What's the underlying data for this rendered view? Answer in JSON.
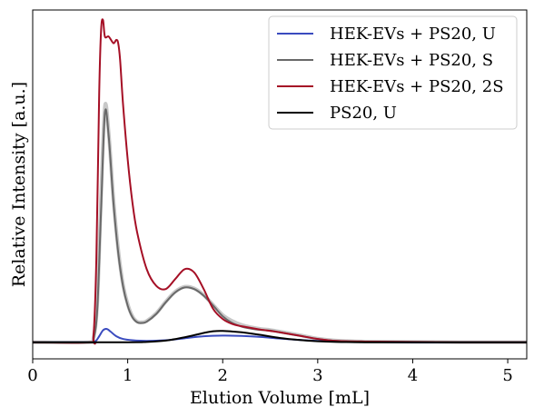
{
  "chart_data": {
    "type": "line",
    "xlabel": "Elution Volume [mL]",
    "ylabel": "Relative Intensity [a.u.]",
    "xlim": [
      0,
      5.2
    ],
    "ylim": [
      -0.05,
      1.0
    ],
    "xticks": [
      0,
      1,
      2,
      3,
      4,
      5
    ],
    "xtick_labels": [
      "0",
      "1",
      "2",
      "3",
      "4",
      "5"
    ],
    "yticks_visible": false,
    "grid": false,
    "legend_position": "top-right",
    "series": [
      {
        "name": "HEK-EVs + PS20, U",
        "color": "#3a4bbf",
        "x": [
          0,
          0.6,
          0.66,
          0.7,
          0.74,
          0.78,
          0.82,
          0.88,
          0.95,
          1.05,
          1.2,
          1.4,
          1.6,
          1.8,
          2.0,
          2.2,
          2.4,
          2.6,
          2.8,
          3.0,
          3.2,
          3.5,
          4.0,
          4.5,
          5.0,
          5.2
        ],
        "y": [
          0,
          0,
          0.003,
          0.018,
          0.036,
          0.04,
          0.032,
          0.018,
          0.01,
          0.006,
          0.004,
          0.006,
          0.012,
          0.018,
          0.02,
          0.019,
          0.016,
          0.011,
          0.007,
          0.004,
          0.002,
          0.001,
          0,
          0,
          0,
          0
        ]
      },
      {
        "name": "HEK-EVs + PS20, S",
        "color": "#696969",
        "x": [
          0,
          0.6,
          0.64,
          0.68,
          0.72,
          0.76,
          0.8,
          0.85,
          0.9,
          0.95,
          1.0,
          1.05,
          1.1,
          1.15,
          1.2,
          1.3,
          1.4,
          1.5,
          1.6,
          1.7,
          1.8,
          1.9,
          2.0,
          2.1,
          2.2,
          2.3,
          2.4,
          2.5,
          2.6,
          2.8,
          3.0,
          3.2,
          3.5,
          4.0,
          4.5,
          5.0,
          5.2
        ],
        "y": [
          0,
          0,
          0.01,
          0.1,
          0.4,
          0.69,
          0.62,
          0.42,
          0.27,
          0.17,
          0.11,
          0.075,
          0.06,
          0.058,
          0.062,
          0.085,
          0.12,
          0.15,
          0.165,
          0.16,
          0.14,
          0.11,
          0.078,
          0.058,
          0.047,
          0.041,
          0.037,
          0.035,
          0.03,
          0.02,
          0.01,
          0.004,
          0.002,
          0.001,
          0,
          0,
          0
        ]
      },
      {
        "name": "HEK-EVs + PS20, 2S",
        "color": "#a50f25",
        "x": [
          0,
          0.6,
          0.64,
          0.67,
          0.7,
          0.72,
          0.74,
          0.76,
          0.8,
          0.85,
          0.88,
          0.9,
          0.92,
          0.95,
          1.0,
          1.05,
          1.1,
          1.2,
          1.3,
          1.4,
          1.5,
          1.6,
          1.7,
          1.8,
          1.9,
          2.0,
          2.1,
          2.2,
          2.3,
          2.4,
          2.5,
          2.6,
          2.8,
          3.0,
          3.2,
          3.5,
          4.0,
          4.5,
          5.0,
          5.2
        ],
        "y": [
          0,
          0,
          0.02,
          0.25,
          0.75,
          0.94,
          0.97,
          0.92,
          0.92,
          0.9,
          0.91,
          0.9,
          0.85,
          0.72,
          0.55,
          0.42,
          0.33,
          0.22,
          0.17,
          0.16,
          0.19,
          0.22,
          0.21,
          0.16,
          0.1,
          0.07,
          0.055,
          0.048,
          0.043,
          0.038,
          0.034,
          0.03,
          0.02,
          0.01,
          0.004,
          0.002,
          0.001,
          0,
          0,
          0
        ]
      },
      {
        "name": "PS20, U",
        "color": "#000000",
        "x": [
          0,
          1.0,
          1.2,
          1.4,
          1.6,
          1.8,
          1.9,
          2.0,
          2.2,
          2.4,
          2.6,
          2.8,
          3.0,
          3.2,
          3.5,
          4.0,
          5.2
        ],
        "y": [
          0,
          0,
          0.001,
          0.005,
          0.015,
          0.028,
          0.033,
          0.034,
          0.03,
          0.022,
          0.013,
          0.007,
          0.003,
          0.001,
          0,
          0,
          0
        ]
      }
    ],
    "shadow_series": [
      {
        "color": "#b0b0b0",
        "x": [
          0,
          0.6,
          0.64,
          0.68,
          0.72,
          0.76,
          0.8,
          0.85,
          0.9,
          0.95,
          1.0,
          1.05,
          1.1,
          1.15,
          1.2,
          1.3,
          1.4,
          1.5,
          1.6,
          1.7,
          1.8,
          1.9,
          2.0,
          2.1,
          2.2,
          2.3,
          2.4,
          2.5,
          2.6,
          2.8,
          3.0,
          3.2,
          3.5,
          4.0,
          4.5,
          5.0,
          5.2
        ],
        "y": [
          0,
          0,
          0.012,
          0.12,
          0.44,
          0.71,
          0.63,
          0.43,
          0.28,
          0.175,
          0.115,
          0.078,
          0.062,
          0.06,
          0.064,
          0.087,
          0.122,
          0.152,
          0.167,
          0.162,
          0.142,
          0.112,
          0.082,
          0.064,
          0.052,
          0.045,
          0.04,
          0.037,
          0.032,
          0.022,
          0.011,
          0.005,
          0.002,
          0.001,
          0,
          0,
          0
        ]
      }
    ]
  }
}
